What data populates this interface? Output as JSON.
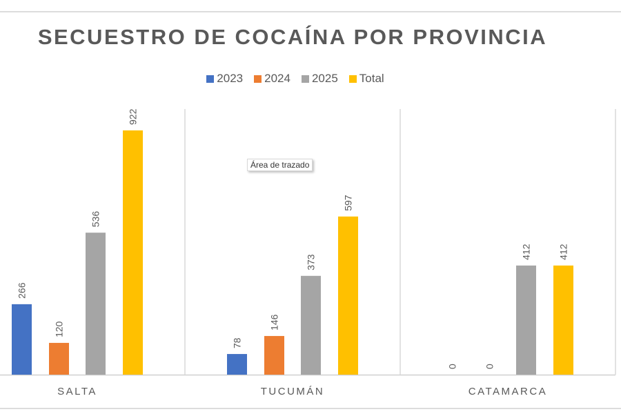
{
  "chart_data": {
    "type": "bar",
    "title": "SECUESTRO DE COCAÍNA POR PROVINCIA",
    "categories": [
      "SALTA",
      "TUCUMÁN",
      "CATAMARCA"
    ],
    "series": [
      {
        "name": "2023",
        "color": "#4472C4",
        "values": [
          266,
          78,
          0
        ]
      },
      {
        "name": "2024",
        "color": "#ED7D31",
        "values": [
          120,
          146,
          0
        ]
      },
      {
        "name": "2025",
        "color": "#A5A5A5",
        "values": [
          536,
          373,
          412
        ]
      },
      {
        "name": "Total",
        "color": "#FFC000",
        "values": [
          922,
          597,
          412
        ]
      }
    ],
    "ylim": [
      0,
      922
    ],
    "legend_position": "top",
    "data_labels": true,
    "grid": false
  },
  "tooltip": "Área de trazado"
}
